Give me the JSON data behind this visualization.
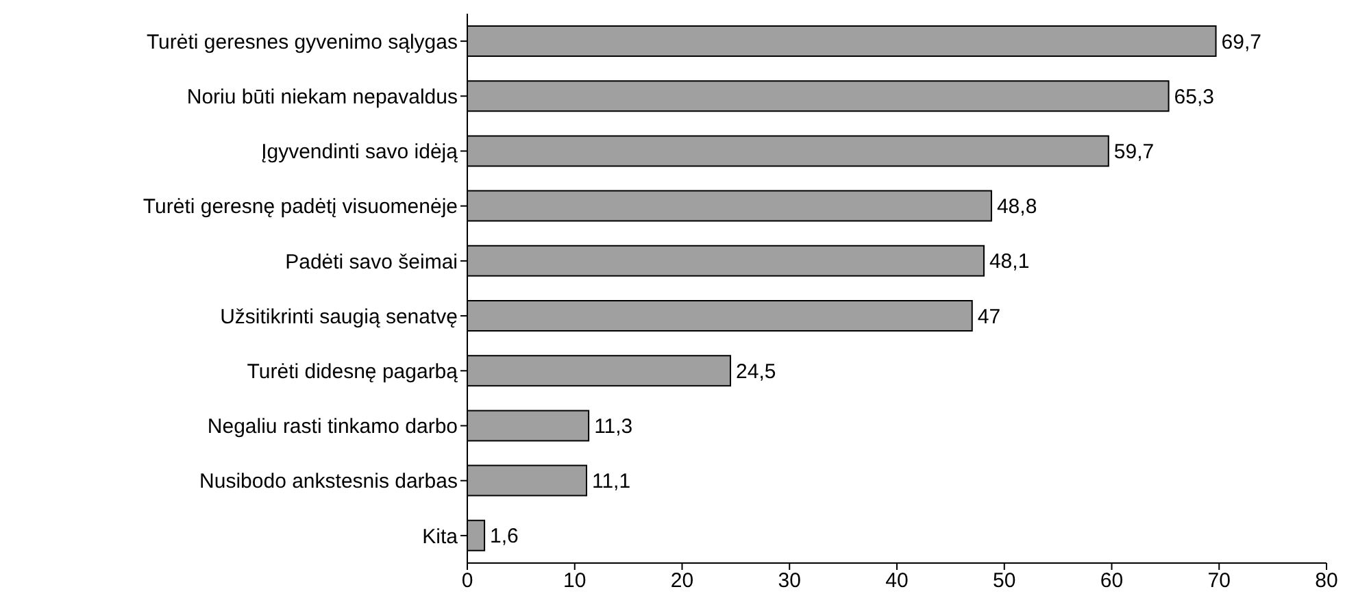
{
  "chart_data": {
    "type": "bar",
    "orientation": "horizontal",
    "categories": [
      "Turėti geresnes gyvenimo sąlygas",
      "Noriu būti niekam nepavaldus",
      "Įgyvendinti savo idėją",
      "Turėti geresnę padėtį visuomenėje",
      "Padėti savo šeimai",
      "Užsitikrinti saugią senatvę",
      "Turėti didesnę pagarbą",
      "Negaliu rasti tinkamo darbo",
      "Nusibodo ankstesnis darbas",
      "Kita"
    ],
    "values": [
      69.7,
      65.3,
      59.7,
      48.8,
      48.1,
      47,
      24.5,
      11.3,
      11.1,
      1.6
    ],
    "value_labels": [
      "69,7",
      "65,3",
      "59,7",
      "48,8",
      "48,1",
      "47",
      "24,5",
      "11,3",
      "11,1",
      "1,6"
    ],
    "color": "#a0a0a0",
    "xlim": [
      0,
      80
    ],
    "xticks": [
      0,
      10,
      20,
      30,
      40,
      50,
      60,
      70,
      80
    ],
    "grid": false
  }
}
